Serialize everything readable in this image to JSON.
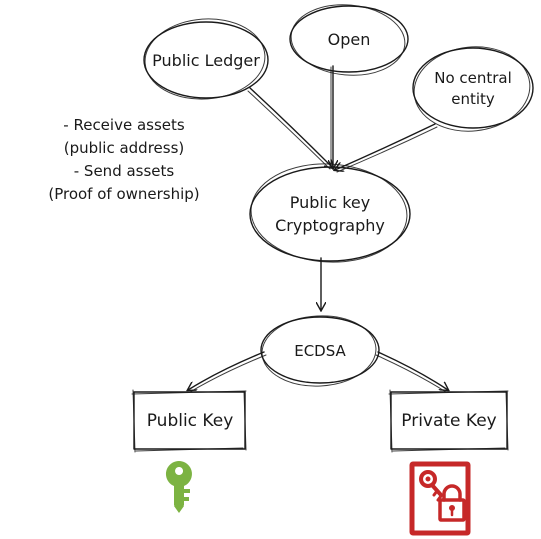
{
  "diagram": {
    "nodes": {
      "public_ledger": "Public Ledger",
      "open": "Open",
      "no_central_line1": "No central",
      "no_central_line2": "entity",
      "pkc_line1": "Public key",
      "pkc_line2": "Cryptography",
      "ecdsa": "ECDSA",
      "public_key": "Public Key",
      "private_key": "Private Key"
    },
    "note": {
      "line1": "- Receive assets",
      "line2": "(public address)",
      "line3": "- Send assets",
      "line4": "(Proof of ownership)"
    },
    "icons": {
      "public_key_icon": "key-icon",
      "private_key_icon": "key-and-lock-document-icon"
    },
    "colors": {
      "ink": "#1a1a1a",
      "public_key_green": "#7cb342",
      "private_key_red": "#c62828"
    }
  }
}
